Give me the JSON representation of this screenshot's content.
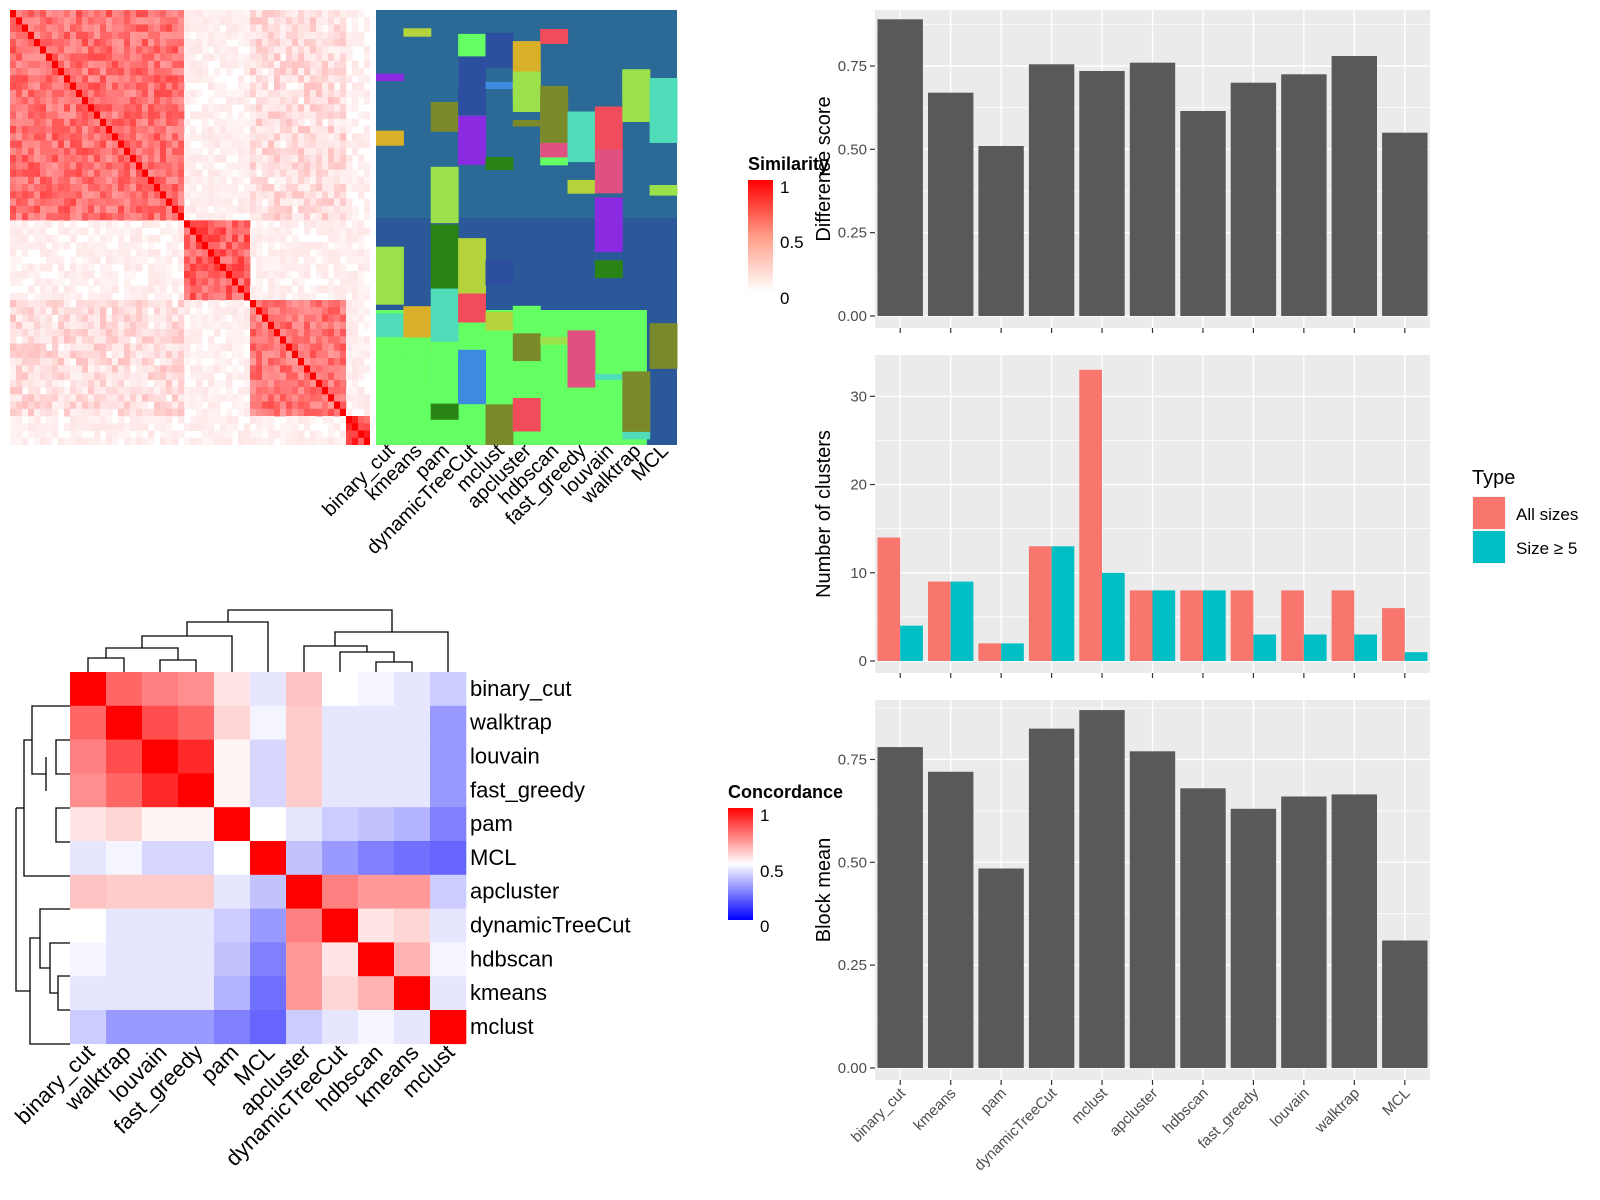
{
  "methods_order": [
    "binary_cut",
    "kmeans",
    "pam",
    "dynamicTreeCut",
    "mclust",
    "apcluster",
    "hdbscan",
    "fast_greedy",
    "louvain",
    "walktrap",
    "MCL"
  ],
  "similarity_heatmap": {
    "legend_title": "Similarity",
    "legend_ticks": [
      "1",
      "0.5",
      "0"
    ],
    "column_labels": [
      "binary_cut",
      "kmeans",
      "pam",
      "dynamicTreeCut",
      "mclust",
      "apcluster",
      "hdbscan",
      "fast_greedy",
      "louvain",
      "walktrap",
      "MCL"
    ]
  },
  "concordance_heatmap": {
    "legend_title": "Concordance",
    "legend_ticks": [
      "1",
      "0.5",
      "0"
    ],
    "labels": [
      "binary_cut",
      "walktrap",
      "louvain",
      "fast_greedy",
      "pam",
      "MCL",
      "apcluster",
      "dynamicTreeCut",
      "hdbscan",
      "kmeans",
      "mclust"
    ],
    "matrix": [
      [
        1.0,
        0.8,
        0.75,
        0.72,
        0.55,
        0.45,
        0.62,
        0.5,
        0.48,
        0.45,
        0.4
      ],
      [
        0.8,
        1.0,
        0.85,
        0.8,
        0.58,
        0.48,
        0.6,
        0.45,
        0.45,
        0.45,
        0.3
      ],
      [
        0.75,
        0.85,
        1.0,
        0.92,
        0.52,
        0.42,
        0.6,
        0.45,
        0.45,
        0.45,
        0.3
      ],
      [
        0.72,
        0.8,
        0.92,
        1.0,
        0.52,
        0.42,
        0.6,
        0.45,
        0.45,
        0.45,
        0.3
      ],
      [
        0.55,
        0.58,
        0.52,
        0.52,
        1.0,
        0.5,
        0.45,
        0.4,
        0.38,
        0.35,
        0.25
      ],
      [
        0.45,
        0.48,
        0.42,
        0.42,
        0.5,
        1.0,
        0.38,
        0.3,
        0.25,
        0.22,
        0.2
      ],
      [
        0.62,
        0.6,
        0.6,
        0.6,
        0.45,
        0.38,
        1.0,
        0.75,
        0.7,
        0.7,
        0.4
      ],
      [
        0.5,
        0.45,
        0.45,
        0.45,
        0.4,
        0.3,
        0.75,
        1.0,
        0.55,
        0.58,
        0.45
      ],
      [
        0.48,
        0.45,
        0.45,
        0.45,
        0.38,
        0.25,
        0.7,
        0.55,
        1.0,
        0.65,
        0.48
      ],
      [
        0.45,
        0.45,
        0.45,
        0.45,
        0.35,
        0.22,
        0.7,
        0.58,
        0.65,
        1.0,
        0.45
      ],
      [
        0.4,
        0.3,
        0.3,
        0.3,
        0.25,
        0.2,
        0.4,
        0.45,
        0.48,
        0.45,
        1.0
      ]
    ]
  },
  "legend_type": {
    "title": "Type",
    "entries": [
      {
        "label": "All sizes",
        "color": "#F8766D"
      },
      {
        "label": "Size ≥ 5",
        "color": "#00BFC4"
      }
    ]
  },
  "colors": {
    "panel_bg": "#EBEBEB",
    "grid": "#FFFFFF",
    "bar": "#595959",
    "heat_high": "#FF0000",
    "heat_low": "#0000FF"
  },
  "chart_data": [
    {
      "type": "bar",
      "ylabel": "Difference score",
      "ylim": [
        0,
        0.9
      ],
      "yticks": [
        "0.00",
        "0.25",
        "0.50",
        "0.75"
      ],
      "categories": [
        "binary_cut",
        "kmeans",
        "pam",
        "dynamicTreeCut",
        "mclust",
        "apcluster",
        "hdbscan",
        "fast_greedy",
        "louvain",
        "walktrap",
        "MCL"
      ],
      "values": [
        0.89,
        0.67,
        0.51,
        0.755,
        0.735,
        0.76,
        0.615,
        0.7,
        0.725,
        0.78,
        0.55
      ]
    },
    {
      "type": "bar",
      "ylabel": "Number of clusters",
      "ylim": [
        0,
        34
      ],
      "yticks": [
        "0",
        "10",
        "20",
        "30"
      ],
      "categories": [
        "binary_cut",
        "kmeans",
        "pam",
        "dynamicTreeCut",
        "mclust",
        "apcluster",
        "hdbscan",
        "fast_greedy",
        "louvain",
        "walktrap",
        "MCL"
      ],
      "series": [
        {
          "name": "All sizes",
          "values": [
            14,
            9,
            2,
            13,
            33,
            8,
            8,
            8,
            8,
            8,
            6
          ]
        },
        {
          "name": "Size ≥ 5",
          "values": [
            4,
            9,
            2,
            13,
            10,
            8,
            8,
            3,
            3,
            3,
            1
          ]
        }
      ]
    },
    {
      "type": "bar",
      "ylabel": "Block mean",
      "ylim": [
        0,
        0.88
      ],
      "yticks": [
        "0.00",
        "0.25",
        "0.50",
        "0.75"
      ],
      "categories": [
        "binary_cut",
        "kmeans",
        "pam",
        "dynamicTreeCut",
        "mclust",
        "apcluster",
        "hdbscan",
        "fast_greedy",
        "louvain",
        "walktrap",
        "MCL"
      ],
      "values": [
        0.78,
        0.72,
        0.485,
        0.825,
        0.87,
        0.77,
        0.68,
        0.63,
        0.66,
        0.665,
        0.31
      ]
    }
  ]
}
